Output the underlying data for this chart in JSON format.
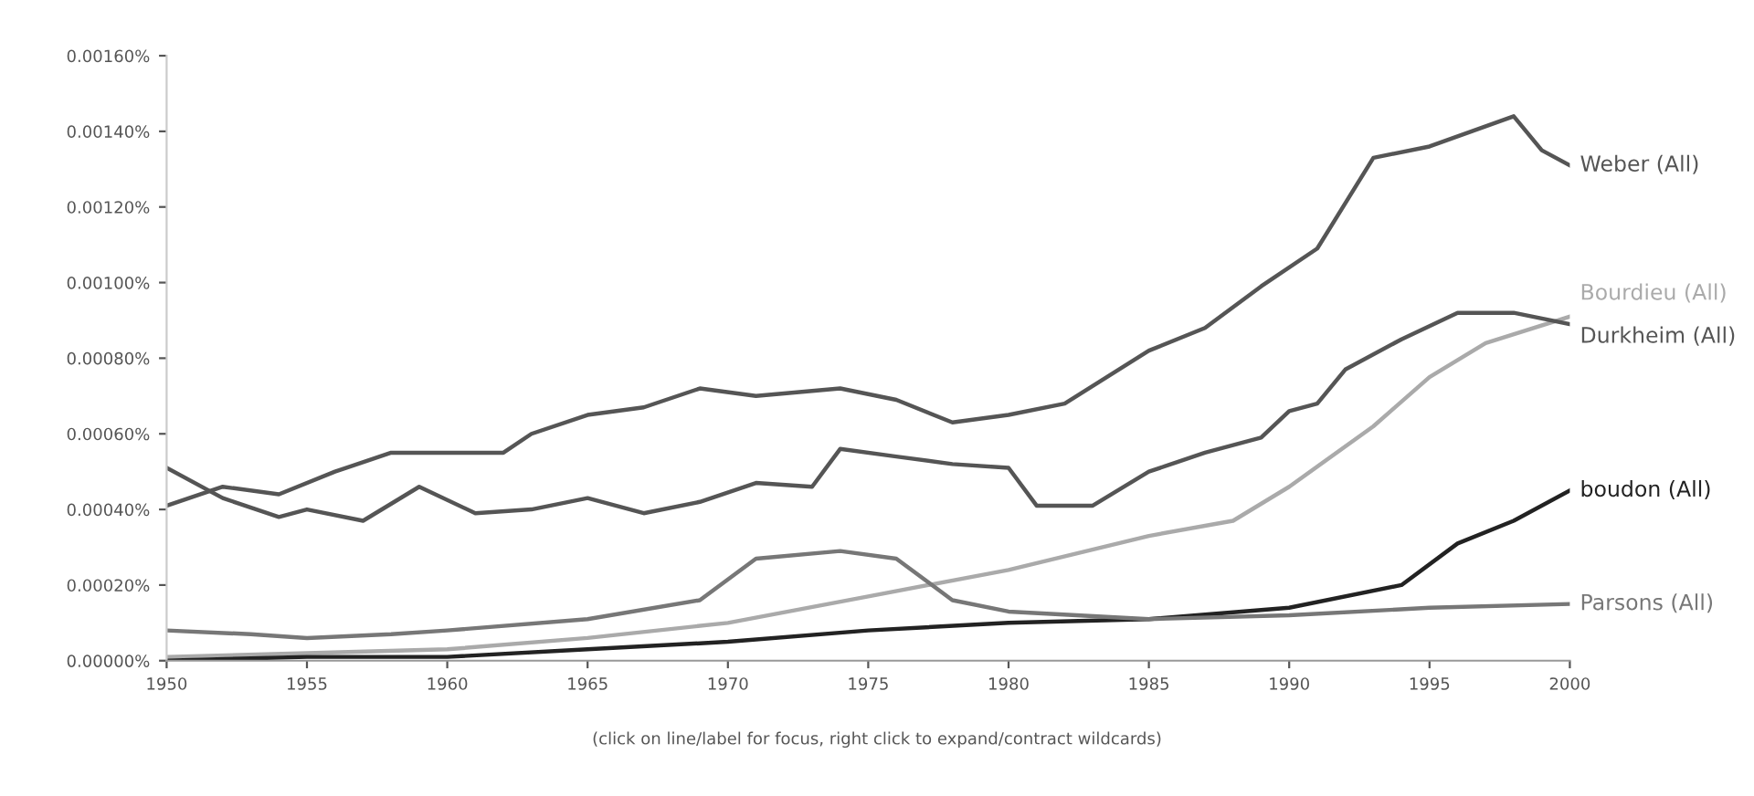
{
  "chart_data": {
    "type": "line",
    "annotations": [
      "(click on line/label for focus, right click to expand/contract wildcards)"
    ],
    "xlim": [
      1950,
      2000
    ],
    "xticks": [
      1950,
      1955,
      1960,
      1965,
      1970,
      1975,
      1980,
      1985,
      1990,
      1995,
      2000
    ],
    "ylim": [
      0,
      0.0016
    ],
    "yticks": [
      {
        "value": 0,
        "label": "0.00000%"
      },
      {
        "value": 0.0002,
        "label": "0.00020%"
      },
      {
        "value": 0.0004,
        "label": "0.00040%"
      },
      {
        "value": 0.0006,
        "label": "0.00060%"
      },
      {
        "value": 0.0008,
        "label": "0.00080%"
      },
      {
        "value": 0.001,
        "label": "0.00100%"
      },
      {
        "value": 0.0012,
        "label": "0.00120%"
      },
      {
        "value": 0.0014,
        "label": "0.00140%"
      },
      {
        "value": 0.0016,
        "label": "0.00160%"
      }
    ],
    "grid": false,
    "legend": false,
    "series": [
      {
        "name": "Weber (All)",
        "color": "#555555",
        "x": [
          1950,
          1952,
          1954,
          1956,
          1958,
          1960,
          1962,
          1963,
          1965,
          1967,
          1969,
          1971,
          1974,
          1976,
          1978,
          1980,
          1982,
          1985,
          1987,
          1989,
          1991,
          1993,
          1995,
          1998,
          1999,
          2000
        ],
        "values": [
          0.00041,
          0.00046,
          0.00044,
          0.0005,
          0.00055,
          0.00055,
          0.00055,
          0.0006,
          0.00065,
          0.00067,
          0.00072,
          0.0007,
          0.00072,
          0.00069,
          0.00063,
          0.00065,
          0.00068,
          0.00082,
          0.00088,
          0.00099,
          0.00109,
          0.00133,
          0.00136,
          0.00144,
          0.00135,
          0.00131
        ]
      },
      {
        "name": "Bourdieu (All)",
        "color": "#aaaaaa",
        "x": [
          1950,
          1955,
          1960,
          1965,
          1970,
          1975,
          1980,
          1985,
          1988,
          1990,
          1993,
          1995,
          1997,
          2000
        ],
        "values": [
          1e-05,
          2e-05,
          3e-05,
          6e-05,
          0.0001,
          0.00017,
          0.00024,
          0.00033,
          0.00037,
          0.00046,
          0.00062,
          0.00075,
          0.00084,
          0.00091
        ]
      },
      {
        "name": "Durkheim (All)",
        "color": "#555555",
        "x": [
          1950,
          1952,
          1954,
          1955,
          1957,
          1959,
          1961,
          1963,
          1965,
          1967,
          1969,
          1971,
          1973,
          1974,
          1976,
          1978,
          1980,
          1981,
          1983,
          1985,
          1987,
          1989,
          1990,
          1991,
          1992,
          1994,
          1996,
          1998,
          2000
        ],
        "values": [
          0.00051,
          0.00043,
          0.00038,
          0.0004,
          0.00037,
          0.00046,
          0.00039,
          0.0004,
          0.00043,
          0.00039,
          0.00042,
          0.00047,
          0.00046,
          0.00056,
          0.00054,
          0.00052,
          0.00051,
          0.00041,
          0.00041,
          0.0005,
          0.00055,
          0.00059,
          0.00066,
          0.00068,
          0.00077,
          0.00085,
          0.00092,
          0.00092,
          0.00089
        ]
      },
      {
        "name": "boudon (All)",
        "color": "#222222",
        "x": [
          1950,
          1955,
          1960,
          1965,
          1970,
          1975,
          1980,
          1985,
          1990,
          1994,
          1996,
          1998,
          2000
        ],
        "values": [
          0.0,
          1e-05,
          1e-05,
          3e-05,
          5e-05,
          8e-05,
          0.0001,
          0.00011,
          0.00014,
          0.0002,
          0.00031,
          0.00037,
          0.00045
        ]
      },
      {
        "name": "Parsons (All)",
        "color": "#777777",
        "x": [
          1950,
          1953,
          1955,
          1958,
          1960,
          1965,
          1969,
          1971,
          1974,
          1976,
          1978,
          1980,
          1985,
          1990,
          1995,
          2000
        ],
        "values": [
          8e-05,
          7e-05,
          6e-05,
          7e-05,
          8e-05,
          0.00011,
          0.00016,
          0.00027,
          0.00029,
          0.00027,
          0.00016,
          0.00013,
          0.00011,
          0.00012,
          0.00014,
          0.00015
        ]
      }
    ]
  }
}
